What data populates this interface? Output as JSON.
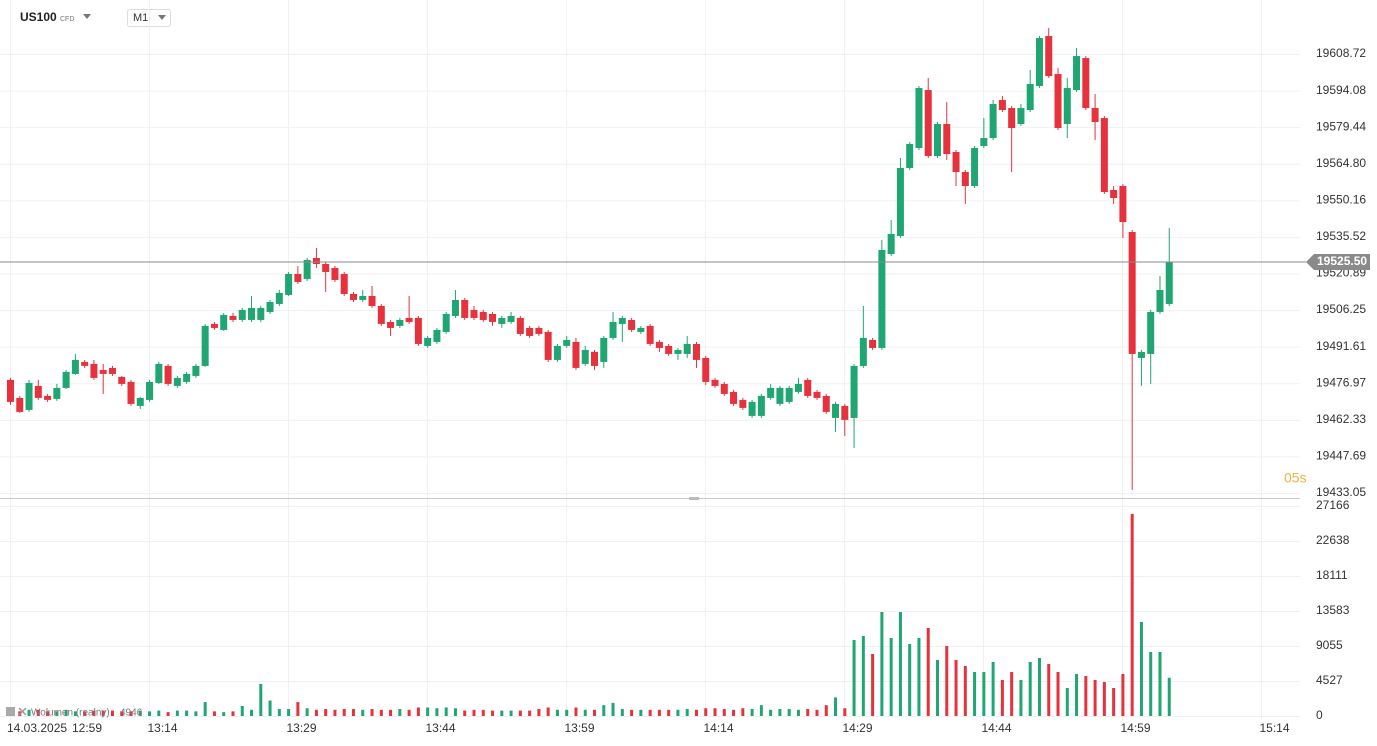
{
  "chart_data": {
    "type": "candlestick",
    "symbol": "US100",
    "instrument_type": "CFD",
    "interval": "M1",
    "date": "14.03.2025",
    "xticks": [
      "12:59",
      "13:14",
      "13:29",
      "13:44",
      "13:59",
      "14:14",
      "14:29",
      "14:44",
      "14:59",
      "15:14"
    ],
    "up_color": "#1fa672",
    "down_color": "#e5323d",
    "grid": true,
    "ylim": [
      19431.05,
      19630.33
    ],
    "yticks": [
      19433.05,
      19447.69,
      19462.33,
      19476.97,
      19491.61,
      19506.25,
      19520.89,
      19535.52,
      19550.16,
      {
        "value": 19564.8,
        "label": "19564.80"
      },
      19579.44,
      19594.08,
      19608.72
    ],
    "last_price": {
      "value": 19525.5,
      "label": "19525.50"
    },
    "countdown": "05s",
    "open": [
      19478.3,
      19471.1,
      19466.3,
      19475.9,
      19471.9,
      19470.7,
      19475.1,
      19480.7,
      19485.5,
      19484.7,
      19482.3,
      19483.1,
      19479.5,
      19477.5,
      19467.9,
      19470.3,
      19477.1,
      19483.9,
      19475.9,
      19477.5,
      19479.9,
      19483.9,
      19500.7,
      19498.3,
      19503.9,
      19502.3,
      19502.3,
      19502.3,
      19505.5,
      19508.7,
      19512.3,
      19520.7,
      19518.7,
      19527.1,
      19524.7,
      19523.1,
      19520.7,
      19512.7,
      19510.3,
      19511.9,
      19507.9,
      19501.5,
      19499.9,
      19503.1,
      19503.1,
      19491.9,
      19493.5,
      19497.5,
      19503.9,
      19510.3,
      19506.3,
      19505.5,
      19504.7,
      19500.7,
      19501.5,
      19503.1,
      19499.1,
      19499.1,
      19497.5,
      19486.3,
      19491.9,
      19493.5,
      19484.7,
      19489.5,
      19485.5,
      19495.1,
      19500.7,
      19502.3,
      19497.5,
      19499.9,
      19493.5,
      19491.9,
      19488.7,
      19488.7,
      19492.7,
      19487.1,
      19478.3,
      19476.7,
      19473.5,
      19470.3,
      19463.9,
      19463.9,
      19471.1,
      19468.7,
      19469.5,
      19473.5,
      19478.3,
      19473.5,
      19471.9,
      19463.1,
      19467.9,
      19463.1,
      19483.9,
      19494.3,
      19491.1,
      19528.7,
      19535.9,
      19563.1,
      19571.1,
      19594.3,
      19567.9,
      19580.7,
      19569.5,
      19561.5,
      19555.9,
      19571.9,
      19575.1,
      19590.3,
      19587.1,
      19580.7,
      19586.3,
      19595.9,
      19615.9,
      19600.7,
      19580.7,
      19594.3,
      19607.1,
      19587.1,
      19583.1,
      19554.3,
      19555.9,
      19537.5,
      19487.1,
      19488.7,
      19505.5,
      19508.7
    ],
    "high": [
      19479.1,
      19471.9,
      19478.3,
      19478.3,
      19472.7,
      19476.7,
      19482.3,
      19488.7,
      19486.3,
      19486.3,
      19484.7,
      19483.9,
      19479.9,
      19478.3,
      19471.5,
      19478.3,
      19485.5,
      19484.7,
      19479.9,
      19481.5,
      19484.7,
      19500.7,
      19501.5,
      19505.1,
      19505.1,
      19507.1,
      19511.9,
      19507.9,
      19510.3,
      19514.3,
      19521.5,
      19523.9,
      19527.1,
      19531.1,
      19525.5,
      19523.9,
      19521.5,
      19513.5,
      19514.3,
      19515.9,
      19508.7,
      19502.3,
      19503.1,
      19511.9,
      19503.9,
      19495.9,
      19499.1,
      19505.5,
      19514.3,
      19511.1,
      19507.9,
      19506.3,
      19505.5,
      19503.9,
      19505.5,
      19503.9,
      19499.9,
      19499.9,
      19498.3,
      19492.7,
      19495.9,
      19495.1,
      19491.9,
      19490.3,
      19495.9,
      19505.5,
      19503.9,
      19503.1,
      19499.9,
      19500.7,
      19494.3,
      19492.7,
      19491.1,
      19495.9,
      19493.5,
      19487.9,
      19479.1,
      19477.5,
      19474.3,
      19471.1,
      19470.3,
      19472.7,
      19476.7,
      19475.9,
      19475.9,
      19479.1,
      19479.1,
      19474.3,
      19472.7,
      19469.5,
      19468.7,
      19484.7,
      19507.9,
      19495.1,
      19534.3,
      19542.3,
      19567.1,
      19573.5,
      19595.9,
      19599.1,
      19581.5,
      19589.5,
      19570.3,
      19562.3,
      19571.9,
      19583.1,
      19590.3,
      19591.9,
      19587.9,
      19588.7,
      19602.3,
      19615.9,
      19619.1,
      19603.1,
      19599.1,
      19611.1,
      19607.9,
      19592.7,
      19583.9,
      19555.9,
      19556.7,
      19538.3,
      19490.3,
      19506.3,
      19519.9,
      19539.1
    ],
    "low": [
      19468.3,
      19465.1,
      19465.5,
      19470.3,
      19469.5,
      19469.9,
      19474.7,
      19480.3,
      19483.1,
      19478.3,
      19472.7,
      19479.9,
      19475.9,
      19467.9,
      19466.7,
      19469.5,
      19476.7,
      19475.9,
      19475.1,
      19476.7,
      19479.1,
      19483.5,
      19498.3,
      19497.9,
      19501.5,
      19501.5,
      19501.5,
      19501.5,
      19504.7,
      19507.9,
      19511.9,
      19516.7,
      19517.9,
      19523.1,
      19513.5,
      19517.5,
      19511.9,
      19509.5,
      19509.5,
      19507.1,
      19499.9,
      19495.9,
      19499.1,
      19500.7,
      19491.9,
      19491.1,
      19492.7,
      19496.7,
      19503.1,
      19502.3,
      19502.3,
      19501.5,
      19499.9,
      19499.1,
      19500.7,
      19495.9,
      19495.1,
      19495.9,
      19485.5,
      19485.5,
      19491.1,
      19482.3,
      19483.9,
      19482.3,
      19483.1,
      19494.3,
      19493.5,
      19497.5,
      19496.7,
      19491.9,
      19489.5,
      19487.9,
      19486.3,
      19487.1,
      19483.1,
      19476.3,
      19475.1,
      19471.9,
      19467.9,
      19466.3,
      19463.1,
      19463.1,
      19470.3,
      19467.9,
      19468.7,
      19472.7,
      19471.1,
      19470.3,
      19464.7,
      19457.5,
      19455.9,
      19451.1,
      19483.1,
      19490.3,
      19490.3,
      19527.9,
      19535.1,
      19562.3,
      19570.3,
      19567.1,
      19567.1,
      19566.3,
      19555.9,
      19548.7,
      19555.1,
      19571.1,
      19574.3,
      19585.5,
      19561.5,
      19579.9,
      19585.5,
      19595.1,
      19599.1,
      19578.3,
      19575.1,
      19593.5,
      19586.3,
      19574.3,
      19552.7,
      19548.7,
      19535.1,
      19434.3,
      19475.9,
      19476.7,
      19504.7,
      19507.9
    ],
    "close": [
      19469.5,
      19465.5,
      19477.1,
      19471.1,
      19470.3,
      19475.1,
      19481.5,
      19486.3,
      19483.9,
      19479.1,
      19480.7,
      19480.7,
      19476.7,
      19468.7,
      19471.1,
      19477.5,
      19484.7,
      19476.7,
      19479.1,
      19480.7,
      19483.9,
      19499.9,
      19499.1,
      19504.3,
      19502.3,
      19506.3,
      19507.1,
      19507.1,
      19509.5,
      19513.1,
      19520.7,
      19517.5,
      19526.3,
      19524.7,
      19521.5,
      19518.3,
      19512.7,
      19510.3,
      19511.9,
      19507.9,
      19500.7,
      19499.1,
      19502.3,
      19501.5,
      19492.7,
      19495.1,
      19498.3,
      19504.7,
      19510.3,
      19503.1,
      19503.1,
      19502.3,
      19501.5,
      19503.1,
      19503.9,
      19496.7,
      19495.9,
      19496.7,
      19486.3,
      19491.9,
      19494.3,
      19483.1,
      19490.3,
      19483.9,
      19495.1,
      19501.5,
      19503.1,
      19498.3,
      19499.1,
      19492.7,
      19491.1,
      19488.7,
      19490.3,
      19492.7,
      19486.3,
      19477.5,
      19475.9,
      19472.7,
      19468.7,
      19467.1,
      19469.5,
      19471.9,
      19475.1,
      19475.1,
      19475.1,
      19476.7,
      19471.9,
      19471.1,
      19465.5,
      19468.7,
      19462.3,
      19483.9,
      19495.1,
      19491.1,
      19530.3,
      19536.7,
      19563.1,
      19572.7,
      19595.1,
      19567.9,
      19580.7,
      19568.7,
      19561.5,
      19555.9,
      19571.1,
      19575.1,
      19588.7,
      19586.3,
      19579.1,
      19587.1,
      19596.7,
      19615.1,
      19599.9,
      19579.1,
      19595.1,
      19607.9,
      19587.1,
      19581.5,
      19553.5,
      19551.1,
      19541.5,
      19488.7,
      19489.5,
      19505.5,
      19514.3,
      19525.5
    ],
    "volume_label": "Wolumen (realny)",
    "volume_ylim": [
      0,
      27942
    ],
    "volume_ticks": [
      0,
      4527,
      9055,
      13583,
      18111,
      22638,
      27166
    ],
    "volume": [
      900,
      600,
      800,
      800,
      600,
      600,
      800,
      600,
      600,
      700,
      700,
      700,
      600,
      600,
      700,
      600,
      700,
      500,
      700,
      700,
      600,
      1800,
      600,
      500,
      600,
      1300,
      800,
      4140,
      2000,
      900,
      900,
      1800,
      1000,
      800,
      900,
      800,
      900,
      900,
      800,
      900,
      800,
      800,
      900,
      800,
      1100,
      1100,
      1000,
      1100,
      1000,
      700,
      800,
      800,
      700,
      700,
      700,
      700,
      700,
      900,
      1100,
      800,
      800,
      1100,
      800,
      800,
      1400,
      1700,
      900,
      800,
      800,
      800,
      800,
      800,
      800,
      900,
      800,
      1000,
      1000,
      900,
      800,
      1000,
      900,
      1400,
      800,
      900,
      900,
      800,
      900,
      800,
      1400,
      2400,
      1000,
      9834,
      10352,
      8023,
      13458,
      10093,
      13458,
      9317,
      10093,
      11387,
      7246,
      9058,
      7246,
      6470,
      5694,
      5694,
      6988,
      4658,
      5694,
      4658,
      6988,
      7505,
      6729,
      5694,
      3623,
      5435,
      5176,
      4658,
      4400,
      3623,
      5435,
      26139,
      12164,
      8282,
      8282,
      4946
    ]
  }
}
